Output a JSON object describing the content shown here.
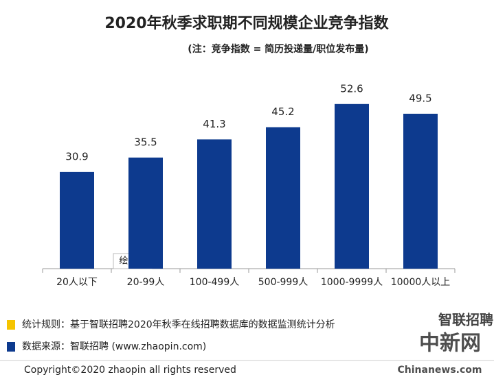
{
  "chart_data": {
    "type": "bar",
    "title": "2020年秋季求职期不同规模企业竞争指数",
    "subtitle": "(注：竞争指数 = 简历投递量/职位发布量)",
    "categories": [
      "20人以下",
      "20-99人",
      "100-499人",
      "500-999人",
      "1000-9999人",
      "10000人以上"
    ],
    "values": [
      30.9,
      35.5,
      41.3,
      45.2,
      52.6,
      49.5
    ],
    "color": "#0d3a8e",
    "ylim": [
      0,
      60
    ],
    "annotation": "绘图区"
  },
  "notes": [
    {
      "color": "#f5c400",
      "text": "统计规则：基于智联招聘2020年秋季在线招聘数据库的数据监测统计分析"
    },
    {
      "color": "#0d3a8e",
      "text": "数据来源：智联招聘 (www.zhaopin.com)"
    }
  ],
  "copyright": "Copyright©2020 zhaopin all rights reserved",
  "watermarks": [
    "智联招聘",
    "中新网",
    "Chinanews.com"
  ]
}
